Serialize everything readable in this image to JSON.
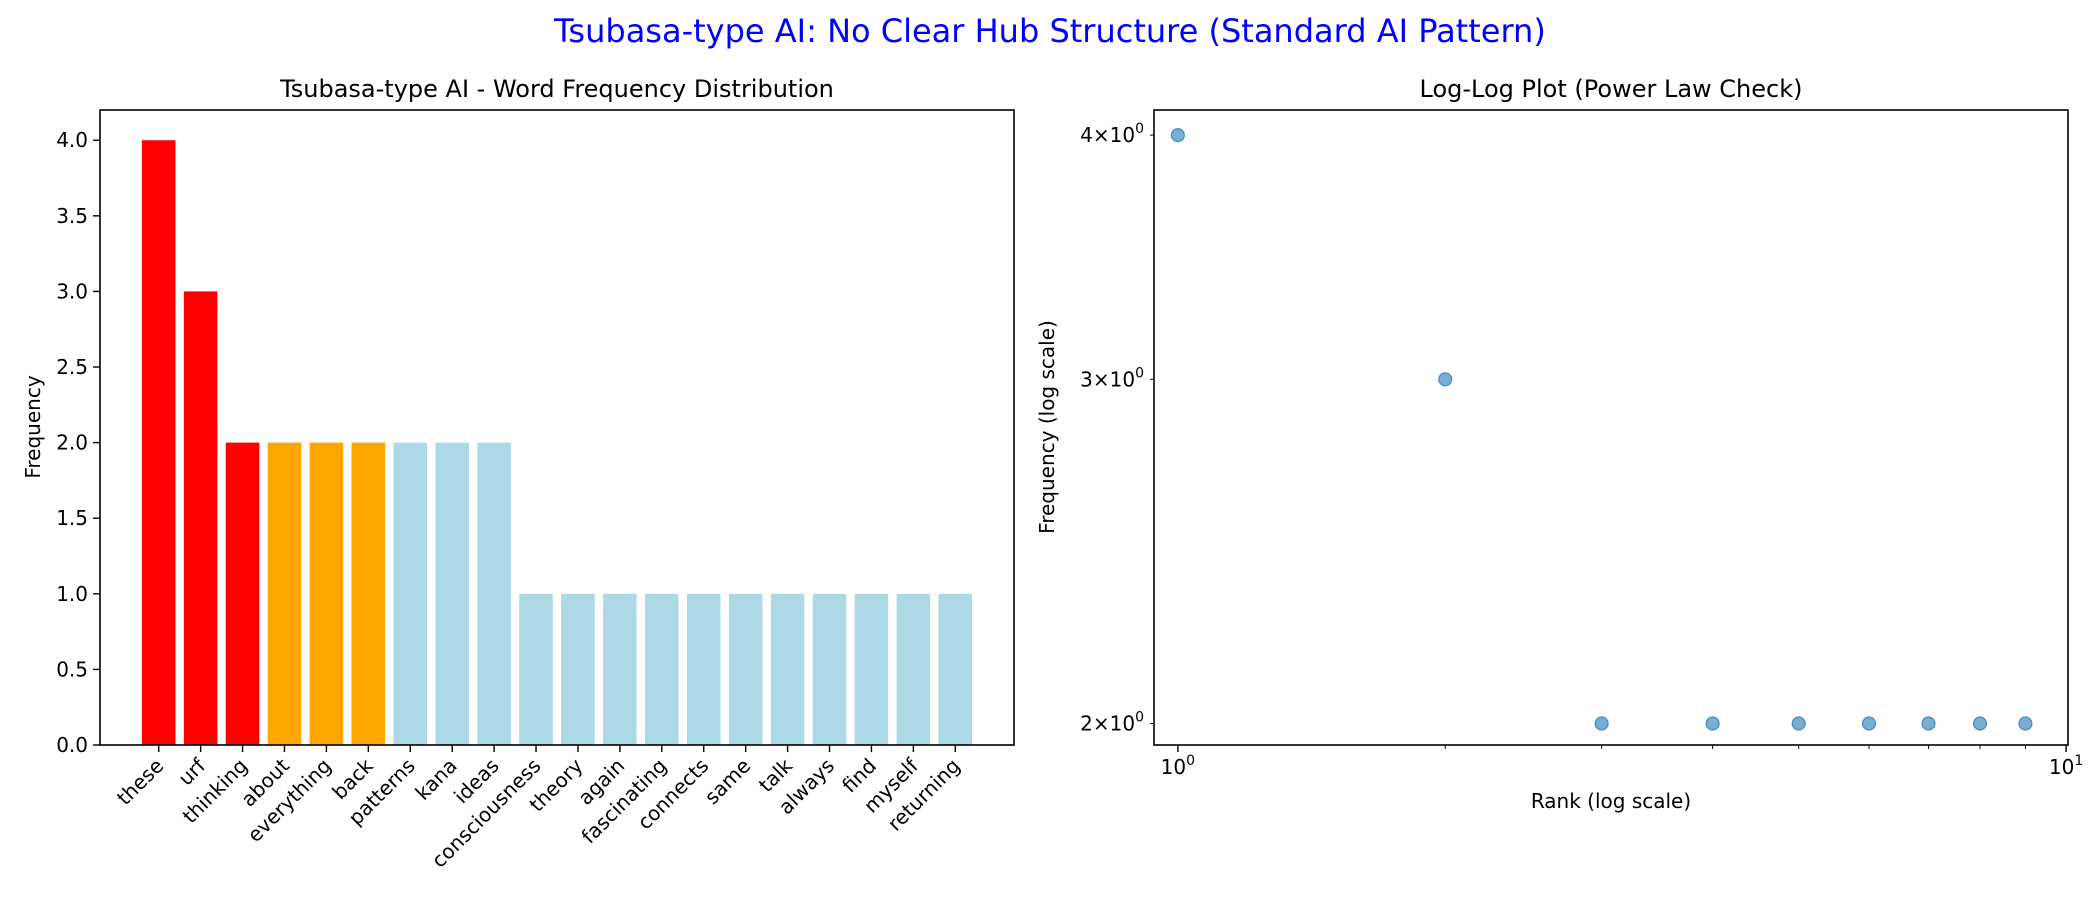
{
  "suptitle": "Tsubasa-type AI: No Clear Hub Structure (Standard AI Pattern)",
  "colors": {
    "suptitle": "#0000ff",
    "hub_top": "#ff0000",
    "hub_mid": "#ffa500",
    "normal": "#add8e6",
    "scatter": "#1f77b4",
    "axis": "#000000"
  },
  "chart_data": [
    {
      "type": "bar",
      "title": "Tsubasa-type AI - Word Frequency Distribution",
      "xlabel": "",
      "ylabel": "Frequency",
      "ylim": [
        0,
        4.2
      ],
      "yticks": [
        "0.0",
        "0.5",
        "1.0",
        "1.5",
        "2.0",
        "2.5",
        "3.0",
        "3.5",
        "4.0"
      ],
      "categories": [
        "these",
        "urf",
        "thinking",
        "about",
        "everything",
        "back",
        "patterns",
        "kana",
        "ideas",
        "consciousness",
        "theory",
        "again",
        "fascinating",
        "connects",
        "same",
        "talk",
        "always",
        "find",
        "myself",
        "returning"
      ],
      "values": [
        4,
        3,
        2,
        2,
        2,
        2,
        2,
        2,
        2,
        1,
        1,
        1,
        1,
        1,
        1,
        1,
        1,
        1,
        1,
        1
      ],
      "bar_colors": [
        "red",
        "red",
        "red",
        "orange",
        "orange",
        "orange",
        "lightblue",
        "lightblue",
        "lightblue",
        "lightblue",
        "lightblue",
        "lightblue",
        "lightblue",
        "lightblue",
        "lightblue",
        "lightblue",
        "lightblue",
        "lightblue",
        "lightblue",
        "lightblue"
      ]
    },
    {
      "type": "scatter",
      "title": "Log-Log Plot (Power Law Check)",
      "xlabel": "Rank (log scale)",
      "ylabel": "Frequency (log scale)",
      "xscale": "log",
      "yscale": "log",
      "xlim": [
        0.94,
        10.05
      ],
      "ylim": [
        1.95,
        4.12
      ],
      "xticks": [
        {
          "value": 1,
          "base": "10",
          "exp": "0"
        },
        {
          "value": 10,
          "base": "10",
          "exp": "1"
        }
      ],
      "yticks": [
        {
          "value": 2,
          "mant": "2",
          "base": "10",
          "exp": "0"
        },
        {
          "value": 3,
          "mant": "3",
          "base": "10",
          "exp": "0"
        },
        {
          "value": 4,
          "mant": "4",
          "base": "10",
          "exp": "0"
        }
      ],
      "x": [
        1,
        2,
        3,
        4,
        5,
        6,
        7,
        8,
        9
      ],
      "y": [
        4,
        3,
        2,
        2,
        2,
        2,
        2,
        2,
        2
      ]
    }
  ]
}
